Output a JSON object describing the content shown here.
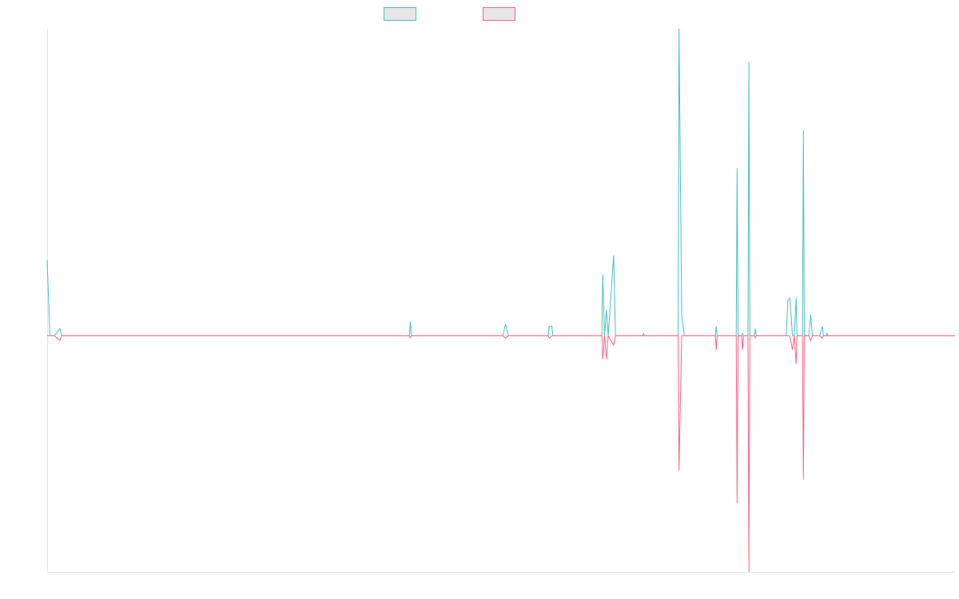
{
  "chart_data": {
    "type": "line",
    "title": "",
    "xlabel": "",
    "ylabel": "",
    "x_range": [
      0,
      1000
    ],
    "ylim": [
      -1.0,
      1.3
    ],
    "grid": false,
    "legend": "top-center",
    "series": [
      {
        "color": "#4bc0c0",
        "fill": "#e6e6e6",
        "points": [
          [
            0,
            0.32
          ],
          [
            3,
            0
          ],
          [
            8,
            0
          ],
          [
            14,
            0.03
          ],
          [
            16,
            0
          ],
          [
            360,
            0
          ],
          [
            399,
            0
          ],
          [
            400,
            0.06
          ],
          [
            401,
            0
          ],
          [
            499,
            0
          ],
          [
            502,
            0
          ],
          [
            505,
            0.05
          ],
          [
            508,
            0
          ],
          [
            550,
            0
          ],
          [
            552,
            0
          ],
          [
            553,
            0.04
          ],
          [
            556,
            0.04
          ],
          [
            557,
            0
          ],
          [
            561,
            0
          ],
          [
            563,
            0
          ],
          [
            578,
            0
          ],
          [
            589,
            0
          ],
          [
            611,
            0
          ],
          [
            612,
            0.26
          ],
          [
            614,
            0
          ],
          [
            616,
            0.11
          ],
          [
            618,
            0
          ],
          [
            624,
            0.34
          ],
          [
            626,
            0
          ],
          [
            656,
            0
          ],
          [
            657,
            0.01
          ],
          [
            658,
            0
          ],
          [
            690,
            0
          ],
          [
            695,
            0
          ],
          [
            696,
            1.3
          ],
          [
            699,
            0.08
          ],
          [
            702,
            0
          ],
          [
            735,
            0
          ],
          [
            736,
            0
          ],
          [
            737,
            0.04
          ],
          [
            738,
            0
          ],
          [
            754,
            0
          ],
          [
            759,
            0
          ],
          [
            760,
            0.71
          ],
          [
            761,
            0
          ],
          [
            762,
            0
          ],
          [
            765,
            0
          ],
          [
            766,
            0.01
          ],
          [
            767,
            0
          ],
          [
            770,
            0
          ],
          [
            772,
            0
          ],
          [
            773,
            1.16
          ],
          [
            774,
            0
          ],
          [
            775,
            0
          ],
          [
            778,
            0
          ],
          [
            779,
            0
          ],
          [
            780,
            0.03
          ],
          [
            781,
            0
          ],
          [
            812,
            0
          ],
          [
            814,
            0
          ],
          [
            816,
            0.15
          ],
          [
            818,
            0.16
          ],
          [
            821,
            0
          ],
          [
            823,
            0
          ],
          [
            825,
            0.16
          ],
          [
            826,
            0
          ],
          [
            828,
            0
          ],
          [
            830,
            0
          ],
          [
            832,
            0
          ],
          [
            833,
            0.87
          ],
          [
            834,
            0
          ],
          [
            836,
            0
          ],
          [
            839,
            0
          ],
          [
            841,
            0.09
          ],
          [
            843,
            0
          ],
          [
            849,
            0
          ],
          [
            851,
            0
          ],
          [
            854,
            0.04
          ],
          [
            855,
            0
          ],
          [
            856,
            0
          ],
          [
            858,
            0
          ],
          [
            859,
            0.01
          ],
          [
            860,
            0
          ],
          [
            900,
            0
          ],
          [
            1000,
            0
          ]
        ]
      },
      {
        "color": "#ff6384",
        "fill": "#e6e6e6",
        "points": [
          [
            0,
            0
          ],
          [
            8,
            0
          ],
          [
            14,
            -0.02
          ],
          [
            16,
            0
          ],
          [
            360,
            0
          ],
          [
            399,
            0
          ],
          [
            400,
            -0.01
          ],
          [
            401,
            0
          ],
          [
            499,
            0
          ],
          [
            502,
            0
          ],
          [
            505,
            -0.01
          ],
          [
            508,
            0
          ],
          [
            550,
            0
          ],
          [
            552,
            0
          ],
          [
            553,
            -0.01
          ],
          [
            556,
            0
          ],
          [
            557,
            0
          ],
          [
            561,
            0
          ],
          [
            563,
            0
          ],
          [
            578,
            0
          ],
          [
            589,
            0
          ],
          [
            611,
            0
          ],
          [
            612,
            -0.1
          ],
          [
            614,
            0
          ],
          [
            616,
            -0.1
          ],
          [
            618,
            0
          ],
          [
            624,
            -0.04
          ],
          [
            626,
            0
          ],
          [
            656,
            0
          ],
          [
            690,
            0
          ],
          [
            695,
            0
          ],
          [
            696,
            -0.57
          ],
          [
            699,
            0
          ],
          [
            702,
            0
          ],
          [
            735,
            0
          ],
          [
            736,
            0
          ],
          [
            737,
            -0.06
          ],
          [
            738,
            0
          ],
          [
            754,
            0
          ],
          [
            759,
            0
          ],
          [
            760,
            -0.71
          ],
          [
            761,
            0
          ],
          [
            762,
            0
          ],
          [
            765,
            0
          ],
          [
            766,
            -0.06
          ],
          [
            767,
            0
          ],
          [
            770,
            0
          ],
          [
            772,
            0
          ],
          [
            773,
            -1.0
          ],
          [
            774,
            0
          ],
          [
            775,
            0
          ],
          [
            778,
            0
          ],
          [
            779,
            0
          ],
          [
            780,
            -0.01
          ],
          [
            781,
            0
          ],
          [
            812,
            0
          ],
          [
            814,
            0
          ],
          [
            816,
            0
          ],
          [
            818,
            0
          ],
          [
            821,
            -0.06
          ],
          [
            823,
            0
          ],
          [
            825,
            -0.12
          ],
          [
            826,
            0
          ],
          [
            828,
            0
          ],
          [
            830,
            0
          ],
          [
            832,
            0
          ],
          [
            833,
            -0.61
          ],
          [
            834,
            0
          ],
          [
            836,
            0
          ],
          [
            839,
            0
          ],
          [
            841,
            -0.02
          ],
          [
            843,
            0
          ],
          [
            849,
            0
          ],
          [
            851,
            0
          ],
          [
            854,
            -0.01
          ],
          [
            855,
            0
          ],
          [
            856,
            0
          ],
          [
            858,
            0
          ],
          [
            860,
            0
          ],
          [
            900,
            0
          ],
          [
            1000,
            0
          ]
        ]
      }
    ]
  }
}
